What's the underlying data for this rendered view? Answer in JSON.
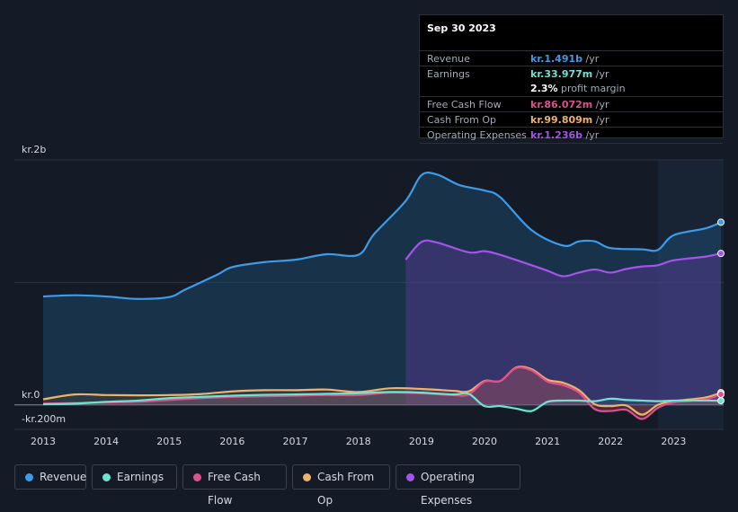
{
  "tooltip": {
    "date": "Sep 30 2023",
    "rows": [
      {
        "label": "Revenue",
        "value": "kr.1.491b",
        "unit": "/yr",
        "color": "#3d9be9"
      },
      {
        "label": "Earnings",
        "value": "kr.33.977m",
        "unit": "/yr",
        "color": "#6fe3d0"
      },
      {
        "label": "",
        "value": "2.3%",
        "unit": "profit margin",
        "color": "#ffffff"
      },
      {
        "label": "Free Cash Flow",
        "value": "kr.86.072m",
        "unit": "/yr",
        "color": "#e0508f"
      },
      {
        "label": "Cash From Op",
        "value": "kr.99.809m",
        "unit": "/yr",
        "color": "#f0b26a"
      },
      {
        "label": "Operating Expenses",
        "value": "kr.1.236b",
        "unit": "/yr",
        "color": "#a455e8"
      }
    ]
  },
  "chart_data": {
    "type": "area",
    "title": "",
    "y_labels": {
      "top": "kr.2b",
      "zero": "kr.0",
      "bottom": "-kr.200m"
    },
    "ylim": [
      -200,
      2000
    ],
    "xlim": [
      2013.0,
      2023.75
    ],
    "x_ticks": [
      "2013",
      "2014",
      "2015",
      "2016",
      "2017",
      "2018",
      "2019",
      "2020",
      "2021",
      "2022",
      "2023"
    ],
    "forecast_shade_from": 2022.75,
    "series": [
      {
        "name": "Revenue",
        "color": "#3d9be9",
        "x": [
          2013.0,
          2013.5,
          2014.0,
          2014.5,
          2015.0,
          2015.25,
          2015.75,
          2016.0,
          2016.5,
          2017.0,
          2017.5,
          2018.0,
          2018.25,
          2018.75,
          2019.0,
          2019.25,
          2019.6,
          2020.0,
          2020.25,
          2020.75,
          2021.25,
          2021.5,
          2021.75,
          2022.0,
          2022.5,
          2022.75,
          2023.0,
          2023.5,
          2023.75
        ],
        "values": [
          885,
          895,
          885,
          865,
          880,
          940,
          1060,
          1125,
          1165,
          1185,
          1230,
          1225,
          1395,
          1665,
          1875,
          1880,
          1795,
          1750,
          1695,
          1425,
          1300,
          1335,
          1335,
          1280,
          1270,
          1265,
          1385,
          1440,
          1491
        ]
      },
      {
        "name": "Operating Expenses",
        "color": "#a455e8",
        "x": [
          2018.75,
          2019.0,
          2019.25,
          2019.75,
          2020.0,
          2020.25,
          2020.75,
          2021.0,
          2021.25,
          2021.5,
          2021.75,
          2022.0,
          2022.25,
          2022.5,
          2022.75,
          2023.0,
          2023.5,
          2023.75
        ],
        "values": [
          1185,
          1330,
          1325,
          1245,
          1255,
          1225,
          1140,
          1095,
          1050,
          1080,
          1105,
          1080,
          1110,
          1130,
          1140,
          1180,
          1210,
          1236
        ]
      },
      {
        "name": "Cash From Op",
        "color": "#f0b26a",
        "x": [
          2013.0,
          2013.5,
          2014.0,
          2014.5,
          2015.0,
          2015.5,
          2016.0,
          2016.5,
          2017.0,
          2017.5,
          2018.0,
          2018.5,
          2019.0,
          2019.5,
          2019.75,
          2020.0,
          2020.25,
          2020.5,
          2020.75,
          2021.0,
          2021.25,
          2021.5,
          2021.75,
          2022.0,
          2022.25,
          2022.5,
          2022.75,
          2023.0,
          2023.5,
          2023.75
        ],
        "values": [
          45,
          85,
          80,
          78,
          80,
          88,
          110,
          120,
          120,
          125,
          105,
          135,
          130,
          115,
          110,
          195,
          195,
          305,
          290,
          205,
          180,
          120,
          5,
          -10,
          -5,
          -80,
          0,
          30,
          60,
          100
        ]
      },
      {
        "name": "Free Cash Flow",
        "color": "#e0508f",
        "x": [
          2013.0,
          2013.5,
          2014.0,
          2014.5,
          2015.0,
          2015.5,
          2016.0,
          2016.5,
          2017.0,
          2017.5,
          2018.0,
          2018.5,
          2019.0,
          2019.5,
          2019.75,
          2020.0,
          2020.25,
          2020.5,
          2020.75,
          2021.0,
          2021.25,
          2021.5,
          2021.75,
          2022.0,
          2022.25,
          2022.5,
          2022.75,
          2023.0,
          2023.5,
          2023.75
        ],
        "values": [
          10,
          15,
          20,
          25,
          40,
          55,
          65,
          70,
          75,
          80,
          80,
          100,
          95,
          80,
          85,
          190,
          195,
          300,
          280,
          190,
          160,
          100,
          -35,
          -50,
          -40,
          -115,
          -25,
          20,
          45,
          86
        ]
      },
      {
        "name": "Earnings",
        "color": "#6fe3d0",
        "x": [
          2013.0,
          2013.5,
          2014.0,
          2014.5,
          2015.0,
          2015.5,
          2016.0,
          2016.5,
          2017.0,
          2017.5,
          2018.0,
          2018.5,
          2019.0,
          2019.5,
          2019.75,
          2020.0,
          2020.25,
          2020.5,
          2020.75,
          2021.0,
          2021.25,
          2021.5,
          2021.75,
          2022.0,
          2022.25,
          2022.5,
          2022.75,
          2023.0,
          2023.5,
          2023.75
        ],
        "values": [
          5,
          10,
          25,
          35,
          55,
          65,
          75,
          82,
          85,
          90,
          95,
          105,
          100,
          85,
          90,
          -10,
          -10,
          -30,
          -50,
          25,
          35,
          35,
          30,
          50,
          40,
          35,
          30,
          35,
          35,
          34
        ]
      }
    ],
    "legend": [
      "Revenue",
      "Earnings",
      "Free Cash Flow",
      "Cash From Op",
      "Operating Expenses"
    ]
  },
  "legend": [
    {
      "label": "Revenue",
      "color": "#3d9be9"
    },
    {
      "label": "Earnings",
      "color": "#6fe3d0"
    },
    {
      "label": "Free Cash Flow",
      "color": "#e0508f"
    },
    {
      "label": "Cash From Op",
      "color": "#f0b26a"
    },
    {
      "label": "Operating Expenses",
      "color": "#a455e8"
    }
  ]
}
